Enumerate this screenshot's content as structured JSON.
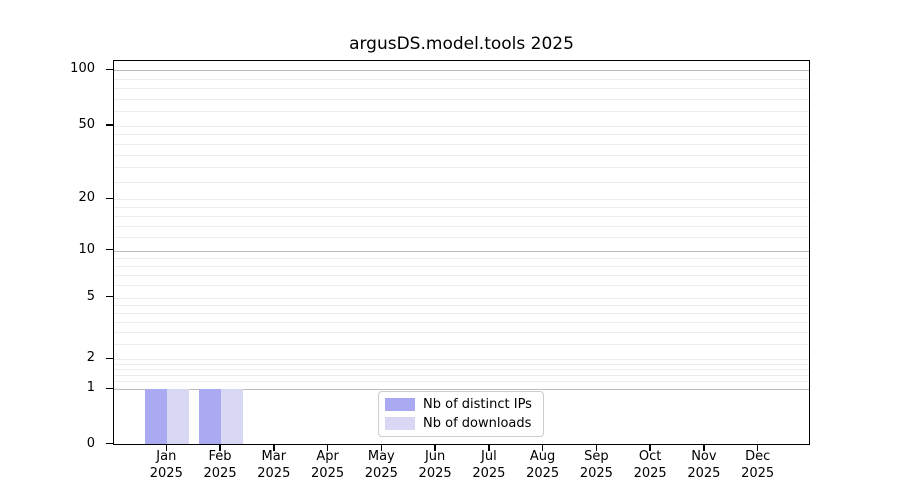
{
  "chart_data": {
    "type": "bar",
    "title": "argusDS.model.tools 2025",
    "categories": [
      "Jan",
      "Feb",
      "Mar",
      "Apr",
      "May",
      "Jun",
      "Jul",
      "Aug",
      "Sep",
      "Oct",
      "Nov",
      "Dec"
    ],
    "category_year_label": "2025",
    "series": [
      {
        "name": "Nb of distinct IPs",
        "color": "#aaaaf2",
        "values": [
          1,
          1,
          0,
          0,
          0,
          0,
          0,
          0,
          0,
          0,
          0,
          0
        ]
      },
      {
        "name": "Nb of downloads",
        "color": "#d8d8f4",
        "values": [
          1,
          1,
          0,
          0,
          0,
          0,
          0,
          0,
          0,
          0,
          0,
          0
        ]
      }
    ],
    "yaxis": {
      "scale": "log-like with zero baseline",
      "tick_labels": [
        "0",
        "1",
        "2",
        "5",
        "10",
        "20",
        "50",
        "100"
      ],
      "tick_values": [
        0,
        1,
        2,
        5,
        10,
        20,
        50,
        100
      ],
      "ylim": [
        0,
        113
      ]
    },
    "xlabel": "",
    "ylabel": "",
    "grid": {
      "horizontal_major_at": [
        1,
        10,
        100
      ],
      "horizontal_minor": true,
      "vertical": false
    },
    "legend": {
      "position": "inside-bottom-center",
      "frame": true
    }
  }
}
